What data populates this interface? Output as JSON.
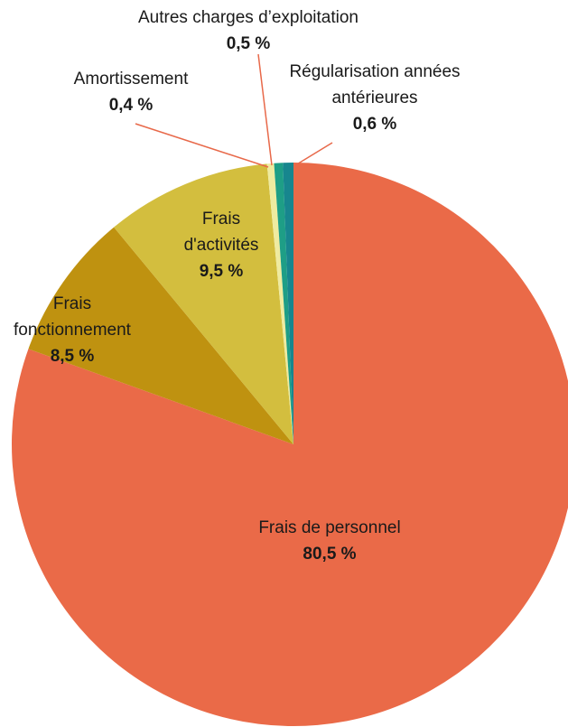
{
  "chart_data": {
    "type": "pie",
    "categories": [
      "Frais de personnel",
      "Frais fonctionnement",
      "Frais d'activités",
      "Amortissement",
      "Autres charges d’exploitation",
      "Régularisation années antérieures"
    ],
    "values": [
      80.5,
      8.5,
      9.5,
      0.4,
      0.5,
      0.6
    ],
    "value_labels": [
      "80,5 %",
      "8,5  %",
      "9,5  %",
      "0,4 %",
      "0,5 %",
      "0,6 %"
    ],
    "colors": [
      "#EA6A48",
      "#BF9210",
      "#D3BE3E",
      "#EFEBA0",
      "#1E9E86",
      "#17868E"
    ]
  }
}
